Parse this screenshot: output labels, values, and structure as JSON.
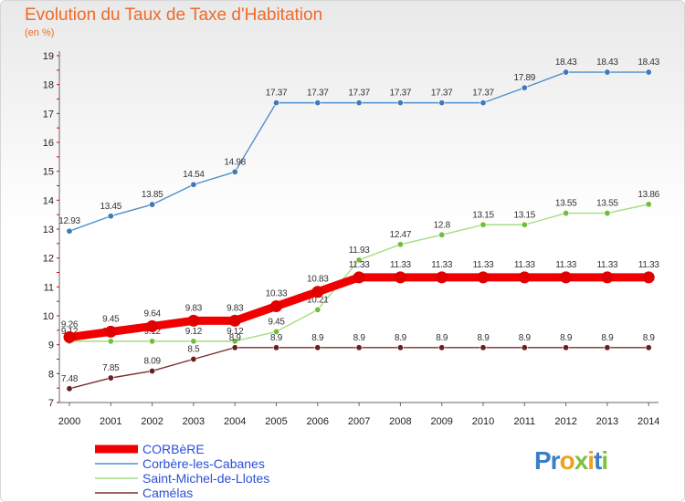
{
  "title": "Evolution du Taux de Taxe d'Habitation",
  "unit": "(en %)",
  "logo": {
    "p": "Pr",
    "o": "o",
    "x": "x",
    "i": "i",
    "t": "t",
    "i2": "i"
  },
  "chart_data": {
    "type": "line",
    "x": [
      2000,
      2001,
      2002,
      2003,
      2004,
      2005,
      2006,
      2007,
      2008,
      2009,
      2010,
      2011,
      2012,
      2013,
      2014
    ],
    "ylim": [
      7,
      19
    ],
    "yticks": [
      7,
      8,
      9,
      10,
      11,
      12,
      13,
      14,
      15,
      16,
      17,
      18,
      19
    ],
    "grid": false,
    "legend": "bottom-left",
    "series": [
      {
        "name": "Corbère-les-Cabanes",
        "color": "#4f8fcb",
        "point_color": "#3f7ab8",
        "labels": [
          "12.93",
          "13.45",
          "13.85",
          "14.54",
          "14.98",
          "17.37",
          "17.37",
          "17.37",
          "17.37",
          "17.37",
          "17.37",
          "17.89",
          "18.43",
          "18.43",
          "18.43"
        ],
        "values": [
          12.93,
          13.45,
          13.85,
          14.54,
          14.98,
          17.37,
          17.37,
          17.37,
          17.37,
          17.37,
          17.37,
          17.89,
          18.43,
          18.43,
          18.43
        ]
      },
      {
        "name": "Saint-Michel-de-Llotes",
        "color": "#a6dc82",
        "point_color": "#6fbf3a",
        "labels": [
          "9.12",
          "9.12",
          "9.12",
          "9.12",
          "9.12",
          "9.45",
          "10.21",
          "11.93",
          "12.47",
          "12.8",
          "13.15",
          "13.15",
          "13.55",
          "13.55",
          "13.86"
        ],
        "values": [
          9.12,
          9.12,
          9.12,
          9.12,
          9.12,
          9.45,
          10.21,
          11.93,
          12.47,
          12.8,
          13.15,
          13.15,
          13.55,
          13.55,
          13.86
        ]
      },
      {
        "name": "Camélas",
        "color": "#7a2e2e",
        "point_color": "#6a1f1f",
        "labels": [
          "7.48",
          "7.85",
          "8.09",
          "8.5",
          "8.9",
          "8.9",
          "8.9",
          "8.9",
          "8.9",
          "8.9",
          "8.9",
          "8.9",
          "8.9",
          "8.9",
          "8.9"
        ],
        "values": [
          7.48,
          7.85,
          8.09,
          8.5,
          8.9,
          8.9,
          8.9,
          8.9,
          8.9,
          8.9,
          8.9,
          8.9,
          8.9,
          8.9,
          8.9
        ]
      },
      {
        "name": "CORBèRE",
        "color": "#f00000",
        "point_color": "#e00000",
        "labels": [
          "9.26",
          "9.45",
          "9.64",
          "9.83",
          "9.83",
          "10.33",
          "10.83",
          "11.33",
          "11.33",
          "11.33",
          "11.33",
          "11.33",
          "11.33",
          "11.33",
          "11.33"
        ],
        "values": [
          9.26,
          9.45,
          9.64,
          9.83,
          9.83,
          10.33,
          10.83,
          11.33,
          11.33,
          11.33,
          11.33,
          11.33,
          11.33,
          11.33,
          11.33
        ]
      }
    ],
    "legend_order": [
      "CORBèRE",
      "Corbère-les-Cabanes",
      "Saint-Michel-de-Llotes",
      "Camélas"
    ]
  }
}
